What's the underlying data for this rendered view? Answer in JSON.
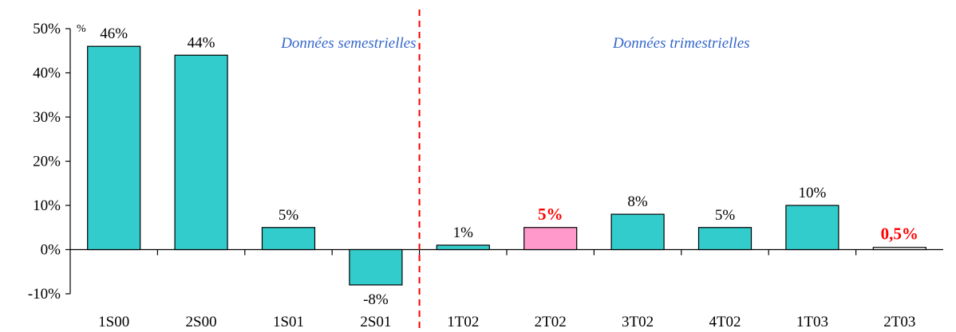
{
  "chart_data": {
    "type": "bar",
    "unit_label": "%",
    "categories": [
      "1S00",
      "2S00",
      "1S01",
      "2S01",
      "1T02",
      "2T02",
      "3T02",
      "4T02",
      "1T03",
      "2T03"
    ],
    "values": [
      46,
      44,
      5,
      -8,
      1,
      5,
      8,
      5,
      10,
      0.5
    ],
    "data_labels": [
      "46%",
      "44%",
      "5%",
      "-8%",
      "1%",
      "5%",
      "8%",
      "5%",
      "10%",
      "0,5%"
    ],
    "highlighted": [
      false,
      false,
      false,
      false,
      false,
      true,
      false,
      false,
      false,
      true
    ],
    "bar_fills": [
      "#33cccc",
      "#33cccc",
      "#33cccc",
      "#33cccc",
      "#33cccc",
      "#ff99cc",
      "#33cccc",
      "#33cccc",
      "#33cccc",
      "#ffffff"
    ],
    "ylim": [
      -10,
      50
    ],
    "yticks": [
      -10,
      0,
      10,
      20,
      30,
      40,
      50
    ],
    "ytick_labels": [
      "-10%",
      "0%",
      "10%",
      "20%",
      "30%",
      "40%",
      "50%"
    ],
    "sections": [
      {
        "label": "Données semestrielles",
        "start_index": 0,
        "end_index": 3
      },
      {
        "label": "Données trimestrielles",
        "start_index": 4,
        "end_index": 9
      }
    ],
    "divider_after_index": 3,
    "grid": false,
    "colors": {
      "bar": "#33cccc",
      "bar_highlight": "#ff99cc",
      "highlight_text": "#ff0000",
      "section_text": "#3366cc",
      "divider": "#ff0000",
      "axis": "#000000"
    }
  }
}
